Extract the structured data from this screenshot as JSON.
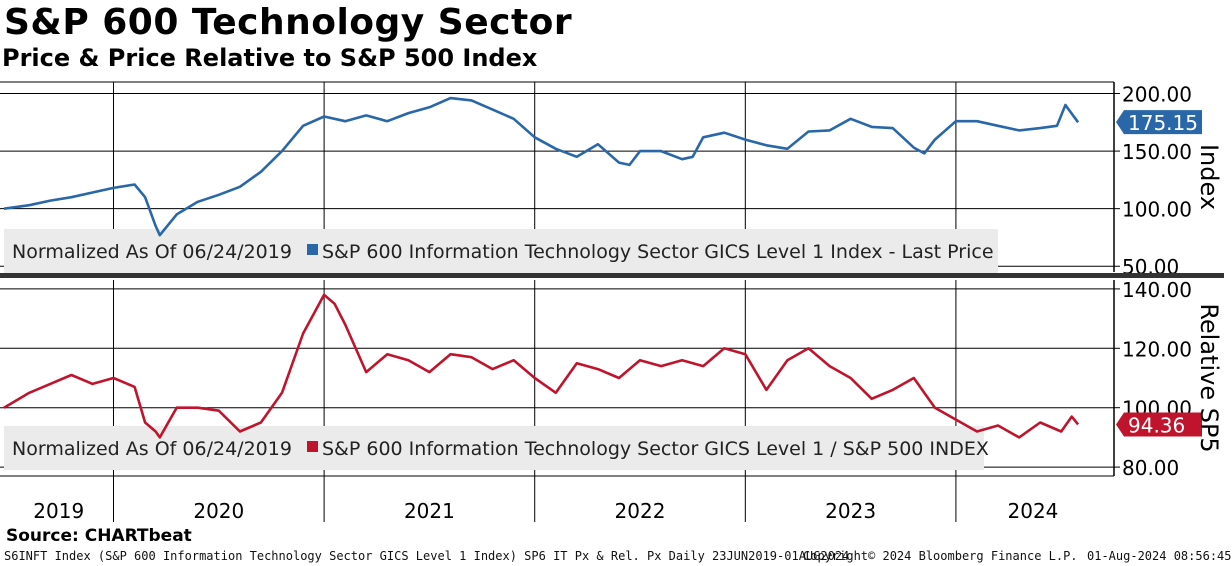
{
  "title": "S&P 600 Technology Sector",
  "subtitle": "Price & Price Relative to S&P 500 Index",
  "source": "Source: CHARTbeat",
  "footer": {
    "left": "S6INFT Index (S&P 600 Information Technology Sector GICS Level 1 Index) SP6 IT Px & Rel. Px  Daily 23JUN2019-01AUG2024",
    "middle": "Copyright© 2024 Bloomberg Finance L.P.",
    "right": "01-Aug-2024 08:56:45"
  },
  "colors": {
    "top_series": "#2a67a8",
    "bottom_series": "#c0142c",
    "legend_bg": "#ebebeb",
    "divider": "#333333"
  },
  "chart_data": [
    {
      "type": "line",
      "panel": "top",
      "axis_title": "Index",
      "legend": {
        "note": "Normalized As Of 06/24/2019",
        "series_label": "S&P 600 Information Technology Sector GICS Level 1 Index - Last Price"
      },
      "ylim": [
        45,
        210
      ],
      "yticks": [
        50,
        100,
        150,
        200
      ],
      "ytick_labels": [
        "50.00",
        "100.00",
        "150.00",
        "200.00"
      ],
      "last_value_label": "175.15",
      "last_value": 175.15,
      "grid": true,
      "x_ticks": [
        2020,
        2021,
        2022,
        2023,
        2024
      ],
      "series": [
        {
          "color": "#2a67a8",
          "x": [
            2019.48,
            2019.6,
            2019.7,
            2019.8,
            2019.9,
            2020.0,
            2020.1,
            2020.15,
            2020.2,
            2020.22,
            2020.3,
            2020.4,
            2020.5,
            2020.6,
            2020.7,
            2020.8,
            2020.9,
            2021.0,
            2021.1,
            2021.2,
            2021.3,
            2021.4,
            2021.5,
            2021.6,
            2021.7,
            2021.8,
            2021.9,
            2022.0,
            2022.1,
            2022.2,
            2022.3,
            2022.4,
            2022.45,
            2022.5,
            2022.6,
            2022.7,
            2022.75,
            2022.8,
            2022.9,
            2023.0,
            2023.1,
            2023.2,
            2023.3,
            2023.4,
            2023.5,
            2023.6,
            2023.7,
            2023.8,
            2023.85,
            2023.9,
            2024.0,
            2024.1,
            2024.2,
            2024.3,
            2024.4,
            2024.48,
            2024.52,
            2024.58
          ],
          "y": [
            100,
            103,
            107,
            110,
            114,
            118,
            121,
            110,
            85,
            77,
            95,
            106,
            112,
            119,
            132,
            150,
            172,
            180,
            176,
            181,
            176,
            183,
            188,
            196,
            194,
            186,
            178,
            162,
            152,
            145,
            156,
            140,
            138,
            150,
            150,
            143,
            145,
            162,
            166,
            160,
            155,
            152,
            167,
            168,
            178,
            171,
            170,
            153,
            148,
            160,
            176,
            176,
            172,
            168,
            170,
            172,
            190,
            175
          ]
        }
      ]
    },
    {
      "type": "line",
      "panel": "bottom",
      "axis_title": "Relative SP5",
      "legend": {
        "note": "Normalized As Of 06/24/2019",
        "series_label": "S&P 600 Information Technology Sector GICS Level 1 / S&P 500 INDEX"
      },
      "ylim": [
        77,
        143
      ],
      "yticks": [
        80,
        100,
        120,
        140
      ],
      "ytick_labels": [
        "80.00",
        "100.00",
        "120.00",
        "140.00"
      ],
      "last_value_label": "94.36",
      "last_value": 94.36,
      "grid": true,
      "x_ticks": [
        2020,
        2021,
        2022,
        2023,
        2024
      ],
      "x_labels": [
        "2019",
        "2020",
        "2021",
        "2022",
        "2023",
        "2024"
      ],
      "series": [
        {
          "color": "#c0142c",
          "x": [
            2019.48,
            2019.6,
            2019.7,
            2019.8,
            2019.9,
            2020.0,
            2020.1,
            2020.15,
            2020.2,
            2020.22,
            2020.3,
            2020.4,
            2020.5,
            2020.6,
            2020.7,
            2020.8,
            2020.9,
            2021.0,
            2021.05,
            2021.1,
            2021.2,
            2021.3,
            2021.4,
            2021.5,
            2021.6,
            2021.7,
            2021.8,
            2021.9,
            2022.0,
            2022.1,
            2022.2,
            2022.3,
            2022.4,
            2022.5,
            2022.6,
            2022.7,
            2022.8,
            2022.9,
            2023.0,
            2023.1,
            2023.2,
            2023.3,
            2023.4,
            2023.5,
            2023.6,
            2023.7,
            2023.8,
            2023.9,
            2024.0,
            2024.1,
            2024.2,
            2024.3,
            2024.4,
            2024.5,
            2024.55,
            2024.58
          ],
          "y": [
            100,
            105,
            108,
            111,
            108,
            110,
            107,
            95,
            92,
            90,
            100,
            100,
            99,
            92,
            95,
            105,
            125,
            138,
            135,
            128,
            112,
            118,
            116,
            112,
            118,
            117,
            113,
            116,
            110,
            105,
            115,
            113,
            110,
            116,
            114,
            116,
            114,
            120,
            118,
            106,
            116,
            120,
            114,
            110,
            103,
            106,
            110,
            100,
            96,
            92,
            94,
            90,
            95,
            92,
            97,
            94.36
          ]
        }
      ]
    }
  ]
}
